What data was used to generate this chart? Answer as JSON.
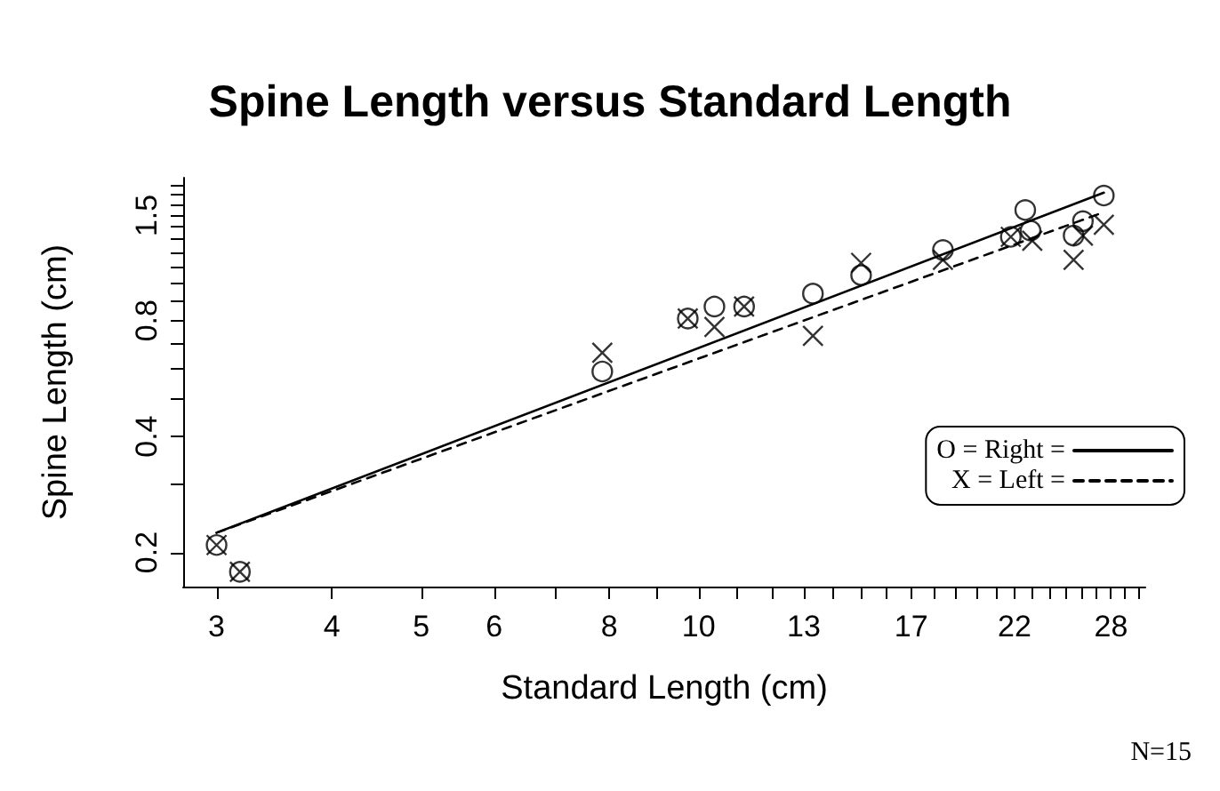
{
  "chart_data": {
    "type": "scatter",
    "title": "Spine Length versus Standard Length",
    "xlabel": "Standard Length (cm)",
    "ylabel": "Spine Length (cm)",
    "annotations": [
      "N=15"
    ],
    "log": "xy",
    "grid": false,
    "legend": "right",
    "xlim": [
      2.76,
      30.5
    ],
    "ylim": [
      0.163,
      1.88
    ],
    "xticks": [
      3,
      4,
      5,
      6,
      {
        "value": 7,
        "label": null
      },
      8,
      {
        "value": 9,
        "label": null
      },
      10,
      {
        "value": 11,
        "label": null
      },
      {
        "value": 12,
        "label": null
      },
      13,
      {
        "value": 14,
        "label": null
      },
      {
        "value": 15,
        "label": null
      },
      {
        "value": 16,
        "label": null
      },
      17,
      {
        "value": 18,
        "label": null
      },
      {
        "value": 19,
        "label": null
      },
      {
        "value": 20,
        "label": null
      },
      {
        "value": 21,
        "label": null
      },
      22,
      {
        "value": 23,
        "label": null
      },
      {
        "value": 24,
        "label": null
      },
      {
        "value": 25,
        "label": null
      },
      {
        "value": 26,
        "label": null
      },
      {
        "value": 27,
        "label": null
      },
      28,
      {
        "value": 29,
        "label": null
      },
      {
        "value": 30,
        "label": null
      }
    ],
    "yticks": [
      0.2,
      {
        "value": 0.3,
        "label": null
      },
      0.4,
      {
        "value": 0.5,
        "label": null
      },
      {
        "value": 0.6,
        "label": null
      },
      {
        "value": 0.7,
        "label": null
      },
      0.8,
      {
        "value": 0.9,
        "label": null
      },
      {
        "value": 1.0,
        "label": null
      },
      {
        "value": 1.1,
        "label": null
      },
      {
        "value": 1.2,
        "label": null
      },
      {
        "value": 1.3,
        "label": null
      },
      {
        "value": 1.4,
        "label": null
      },
      1.5,
      {
        "value": 1.6,
        "label": null
      },
      {
        "value": 1.7,
        "label": null
      },
      {
        "value": 1.8,
        "label": null
      }
    ],
    "series": [
      {
        "marker": "circle",
        "color": "#000000",
        "x": [
          3,
          3.18,
          7.86,
          9.73,
          10.4,
          11.2,
          13.3,
          15.0,
          18.4,
          21.8,
          22.6,
          22.9,
          25.5,
          26.1,
          27.5
        ],
        "values": [
          0.209,
          0.178,
          0.59,
          0.81,
          0.87,
          0.87,
          0.94,
          1.05,
          1.22,
          1.32,
          1.55,
          1.37,
          1.33,
          1.45,
          1.69
        ]
      },
      {
        "marker": "cross",
        "color": "#000000",
        "x": [
          3,
          3.18,
          7.86,
          9.73,
          10.4,
          11.2,
          13.3,
          15.0,
          18.4,
          21.8,
          23.0,
          25.5,
          26.1,
          27.5
        ],
        "values": [
          0.209,
          0.178,
          0.66,
          0.81,
          0.77,
          0.87,
          0.73,
          1.13,
          1.15,
          1.32,
          1.29,
          1.15,
          1.33,
          1.42
        ]
      },
      {
        "name": "O = Right =",
        "type": "line",
        "marker": "none",
        "line_style": "solid",
        "color": "#000000",
        "x": [
          3,
          27.5
        ],
        "values": [
          0.225,
          1.72
        ]
      },
      {
        "name": "X = Left =",
        "type": "line",
        "marker": "none",
        "line_style": "dashed",
        "color": "#000000",
        "x": [
          3,
          27.5
        ],
        "values": [
          0.225,
          1.53
        ]
      }
    ]
  }
}
